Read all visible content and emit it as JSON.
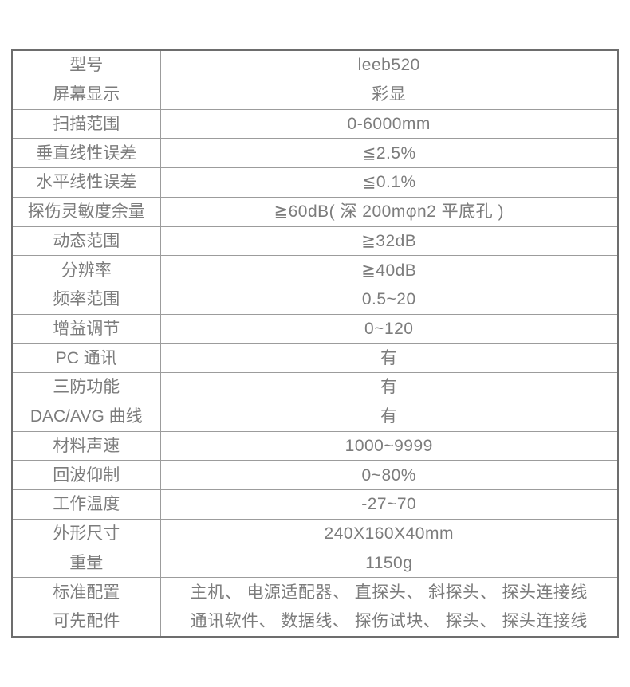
{
  "colors": {
    "text_gray": "#7c7c7c",
    "outer_border": "#6d6d6d",
    "inner_border": "#9c9c9c",
    "background": "#ffffff"
  },
  "table": {
    "rows": [
      {
        "label": "型号",
        "value": "leeb520"
      },
      {
        "label": "屏幕显示",
        "value": "彩显"
      },
      {
        "label": "扫描范围",
        "value": "0-6000mm"
      },
      {
        "label": "垂直线性误差",
        "value": "≦2.5%"
      },
      {
        "label": "水平线性误差",
        "value": "≦0.1%"
      },
      {
        "label": "探伤灵敏度余量",
        "value": "≧60dB( 深 200mφn2 平底孔 )"
      },
      {
        "label": "动态范围",
        "value": "≧32dB"
      },
      {
        "label": "分辨率",
        "value": "≧40dB"
      },
      {
        "label": "频率范围",
        "value": "0.5~20"
      },
      {
        "label": "增益调节",
        "value": "0~120"
      },
      {
        "label": "PC 通讯",
        "value": "有"
      },
      {
        "label": "三防功能",
        "value": "有"
      },
      {
        "label": "DAC/AVG 曲线",
        "value": "有"
      },
      {
        "label": "材料声速",
        "value": "1000~9999"
      },
      {
        "label": "回波仰制",
        "value": "0~80%"
      },
      {
        "label": "工作温度",
        "value": "-27~70"
      },
      {
        "label": "外形尺寸",
        "value": "240X160X40mm"
      },
      {
        "label": "重量",
        "value": "1150g"
      },
      {
        "label": "标准配置",
        "value": "主机、 电源适配器、 直探头、 斜探头、 探头连接线"
      },
      {
        "label": "可先配件",
        "value": "通讯软件、 数据线、 探伤试块、 探头、 探头连接线"
      }
    ]
  }
}
